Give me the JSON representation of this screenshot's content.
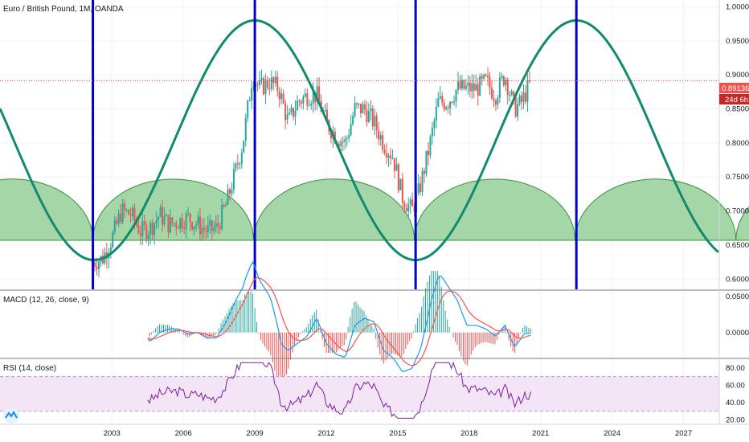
{
  "colors": {
    "up": "#26a69a",
    "down": "#ef5350",
    "price_tag": "#ef5350",
    "cycle_line": "#0000cc",
    "sine": "#118a6e",
    "arch_fill": "#a5d6a7",
    "arch_stroke": "#388e3c",
    "macd": "#2196f3",
    "signal": "#ff5252",
    "rsi_line": "#7b1fa2",
    "rsi_band": "#f3e5f5"
  },
  "chart_data": [
    {
      "type": "candlestick",
      "title": "Euro / British Pound, 1M, OANDA",
      "ylim": [
        0.585,
        1.01
      ],
      "xlim": [
        1998.3,
        2028.5
      ],
      "y_ticks": [
        "1.00000",
        "0.95000",
        "0.90000",
        "0.85000",
        "0.80000",
        "0.75000",
        "0.70000",
        "0.65000",
        "0.60000"
      ],
      "y_tick_values": [
        1.0,
        0.95,
        0.9,
        0.85,
        0.8,
        0.75,
        0.7,
        0.65,
        0.6
      ],
      "last_price": "0.89136",
      "countdown": "24d 6h",
      "last_value": 0.89136,
      "cycle_lines_x": [
        2002.2,
        2009.0,
        2015.75,
        2022.5
      ],
      "sine_min": 0.628,
      "sine_max": 0.98,
      "sine_period_years": 13.5,
      "sine_peak_x": 2009.0,
      "arch_base": 0.657,
      "arch_top": 0.747,
      "arch_period_years": 6.75,
      "arch_start_x": 1995.45,
      "price_path": [
        [
          2002.2,
          0.625
        ],
        [
          2002.6,
          0.63
        ],
        [
          2003.0,
          0.66
        ],
        [
          2003.4,
          0.7
        ],
        [
          2003.8,
          0.695
        ],
        [
          2004.2,
          0.67
        ],
        [
          2004.6,
          0.675
        ],
        [
          2005.0,
          0.695
        ],
        [
          2005.4,
          0.68
        ],
        [
          2005.8,
          0.685
        ],
        [
          2006.2,
          0.69
        ],
        [
          2006.6,
          0.68
        ],
        [
          2007.0,
          0.67
        ],
        [
          2007.4,
          0.675
        ],
        [
          2007.8,
          0.71
        ],
        [
          2008.2,
          0.76
        ],
        [
          2008.5,
          0.8
        ],
        [
          2008.9,
          0.9
        ],
        [
          2009.2,
          0.88
        ],
        [
          2009.6,
          0.89
        ],
        [
          2010.0,
          0.88
        ],
        [
          2010.4,
          0.83
        ],
        [
          2010.8,
          0.86
        ],
        [
          2011.2,
          0.87
        ],
        [
          2011.6,
          0.87
        ],
        [
          2012.0,
          0.83
        ],
        [
          2012.4,
          0.81
        ],
        [
          2012.8,
          0.8
        ],
        [
          2013.2,
          0.85
        ],
        [
          2013.6,
          0.85
        ],
        [
          2014.0,
          0.83
        ],
        [
          2014.4,
          0.8
        ],
        [
          2014.8,
          0.78
        ],
        [
          2015.2,
          0.72
        ],
        [
          2015.6,
          0.7
        ],
        [
          2015.9,
          0.73
        ],
        [
          2016.3,
          0.79
        ],
        [
          2016.7,
          0.86
        ],
        [
          2017.1,
          0.86
        ],
        [
          2017.5,
          0.88
        ],
        [
          2017.9,
          0.88
        ],
        [
          2018.3,
          0.88
        ],
        [
          2018.7,
          0.89
        ],
        [
          2019.1,
          0.87
        ],
        [
          2019.5,
          0.9
        ],
        [
          2019.9,
          0.85
        ],
        [
          2020.2,
          0.86
        ],
        [
          2020.6,
          0.89
        ]
      ]
    },
    {
      "type": "line",
      "title": "MACD (12, 26, close, 9)",
      "ylim": [
        -0.035,
        0.058
      ],
      "y_ticks": [
        "0.05000",
        "0.00000"
      ],
      "y_tick_values": [
        0.05,
        0.0
      ],
      "series": []
    },
    {
      "type": "line",
      "title": "RSI (14, close)",
      "ylim": [
        15,
        90
      ],
      "y_ticks": [
        "80.00",
        "60.00",
        "40.00",
        "20.00"
      ],
      "y_tick_values": [
        80,
        60,
        40,
        20
      ],
      "band": [
        30,
        70
      ]
    }
  ],
  "x_axis": {
    "ticks": [
      "2003",
      "2006",
      "2009",
      "2012",
      "2015",
      "2018",
      "2021",
      "2024",
      "2027"
    ],
    "tick_values": [
      2003,
      2006,
      2009,
      2012,
      2015,
      2018,
      2021,
      2024,
      2027
    ]
  }
}
